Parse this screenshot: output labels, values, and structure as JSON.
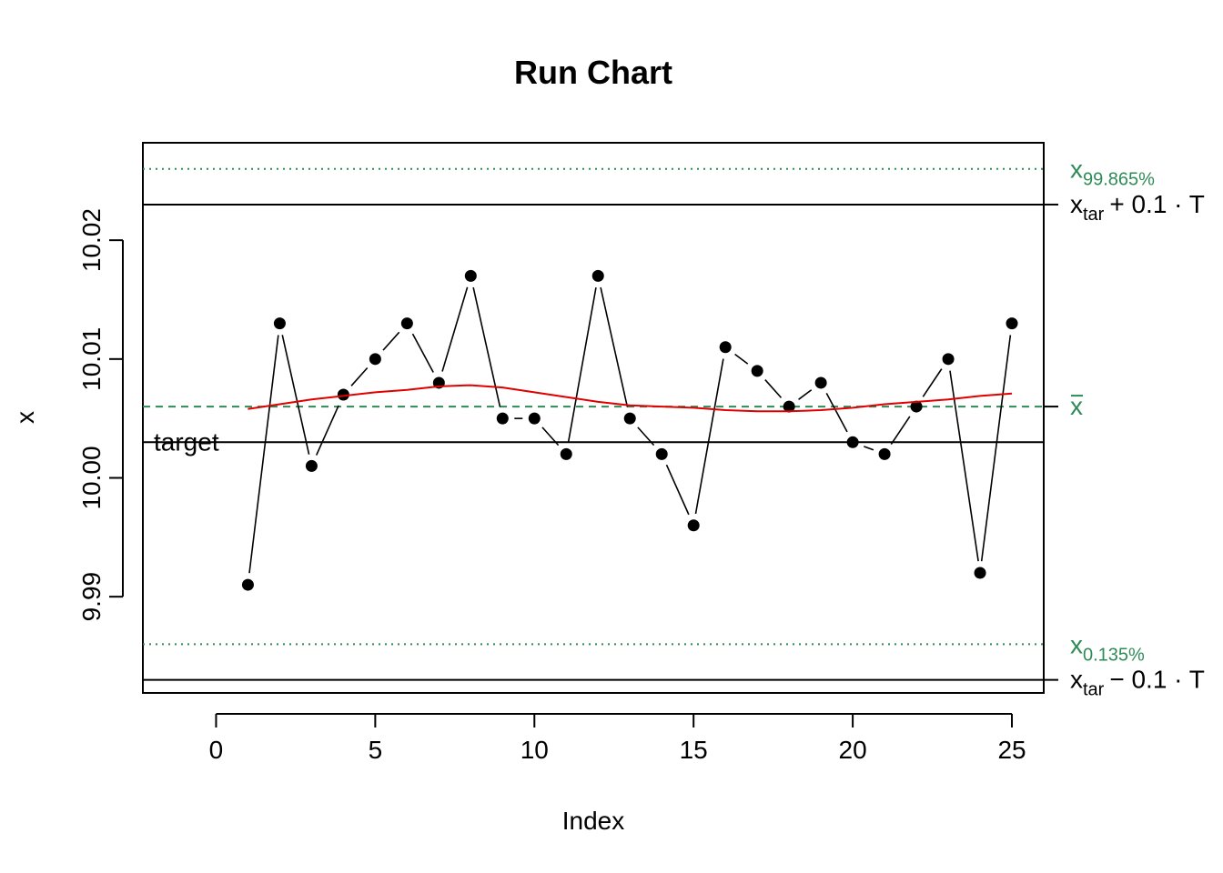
{
  "chart_data": {
    "type": "scatter",
    "title": "Run Chart",
    "xlabel": "Index",
    "ylabel": "x",
    "xlim": [
      -2.3,
      26.0
    ],
    "ylim": [
      9.9819,
      10.0282
    ],
    "x_ticks": [
      0,
      5,
      10,
      15,
      20,
      25
    ],
    "x_tick_labels": [
      "0",
      "5",
      "10",
      "15",
      "20",
      "25"
    ],
    "y_ticks": [
      9.99,
      10.0,
      10.01,
      10.02
    ],
    "y_tick_labels": [
      "9.99",
      "10.00",
      "10.01",
      "10.02"
    ],
    "grid": false,
    "series": [
      {
        "x": [
          1,
          2,
          3,
          4,
          5,
          6,
          7,
          8,
          9,
          10,
          11,
          12,
          13,
          14,
          15,
          16,
          17,
          18,
          19,
          20,
          21,
          22,
          23,
          24,
          25
        ],
        "values": [
          9.991,
          10.013,
          10.001,
          10.007,
          10.01,
          10.013,
          10.008,
          10.017,
          10.005,
          10.005,
          10.002,
          10.017,
          10.005,
          10.002,
          9.996,
          10.011,
          10.009,
          10.006,
          10.008,
          10.003,
          10.002,
          10.006,
          10.01,
          9.992,
          10.013
        ],
        "color": "#000000"
      },
      {
        "x": [
          1,
          2,
          3,
          4,
          5,
          6,
          7,
          8,
          9,
          10,
          11,
          12,
          13,
          14,
          15,
          16,
          17,
          18,
          19,
          20,
          21,
          22,
          23,
          24,
          25
        ],
        "values": [
          10.0058,
          10.0062,
          10.0066,
          10.0069,
          10.0072,
          10.0074,
          10.0077,
          10.0078,
          10.0076,
          10.0072,
          10.0068,
          10.0064,
          10.0061,
          10.006,
          10.0059,
          10.0057,
          10.0056,
          10.0056,
          10.0057,
          10.0059,
          10.0062,
          10.0064,
          10.0066,
          10.0069,
          10.0071
        ],
        "color": "#e00000",
        "style": "smooth"
      }
    ],
    "reference_lines": [
      {
        "id": "upper_quantile",
        "value": 10.026,
        "label": "x",
        "sub": "99.865%",
        "color": "#2e8b57",
        "dash": "dotted"
      },
      {
        "id": "upper_limit",
        "value": 10.023,
        "label": "x",
        "sub": "tar",
        "suffix": "+ 0.1 · T",
        "color": "#000000",
        "dash": "solid"
      },
      {
        "id": "mean",
        "value": 10.006,
        "label": "x",
        "overline": true,
        "color": "#2e8b57",
        "dash": "dashed"
      },
      {
        "id": "target",
        "value": 10.003,
        "label": "target",
        "color": "#000000",
        "dash": "solid",
        "label_position": "inside-left"
      },
      {
        "id": "lower_quantile",
        "value": 9.986,
        "label": "x",
        "sub": "0.135%",
        "color": "#2e8b57",
        "dash": "dotted"
      },
      {
        "id": "lower_limit",
        "value": 9.983,
        "label": "x",
        "sub": "tar",
        "suffix": "− 0.1 · T",
        "color": "#000000",
        "dash": "solid"
      }
    ]
  }
}
